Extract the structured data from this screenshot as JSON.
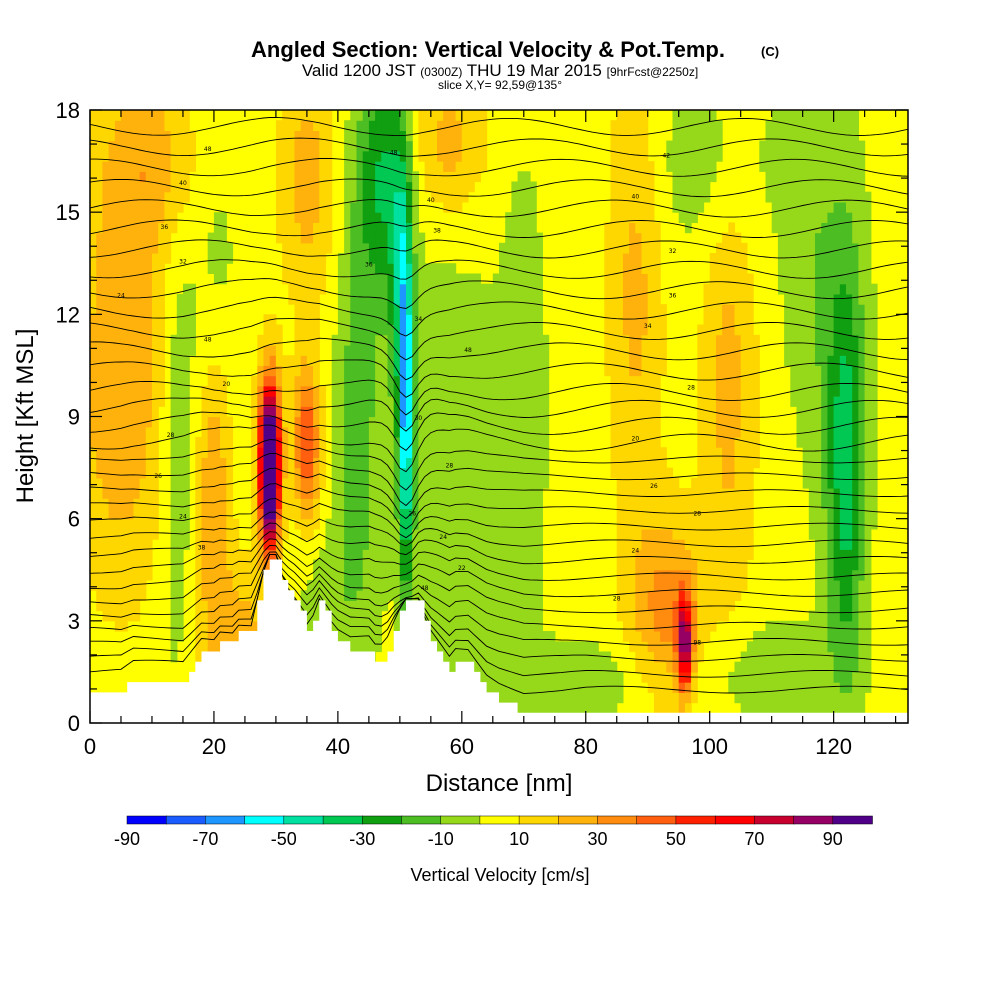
{
  "header": {
    "title": "Angled Section: Vertical Velocity & Pot.Temp.",
    "title_mark": "(C)",
    "valid_prefix": "Valid 1200 JST",
    "valid_zulu": "(0300Z)",
    "valid_date": "THU 19 Mar 2015",
    "forecast": "[9hrFcst@2250z]",
    "slice": "slice X,Y= 92,59@135°"
  },
  "chart_data": {
    "type": "heatmap",
    "title": "Angled Section: Vertical Velocity & Pot.Temp.",
    "xlabel": "Distance [nm]",
    "ylabel": "Height [Kft MSL]",
    "xlim": [
      0,
      132
    ],
    "ylim": [
      0,
      18
    ],
    "x_ticks": [
      0,
      20,
      40,
      60,
      80,
      100,
      120
    ],
    "y_ticks": [
      0,
      3,
      6,
      9,
      12,
      15,
      18
    ],
    "grid": false,
    "colorbar": {
      "label": "Vertical Velocity [cm/s]",
      "bounds": [
        -90,
        100
      ],
      "step": 10,
      "tick_labels": [
        "-90",
        "-70",
        "-50",
        "-30",
        "-10",
        "10",
        "30",
        "50",
        "70",
        "90"
      ],
      "colors": [
        "#0000ff",
        "#1a5cff",
        "#1e96ff",
        "#00ffff",
        "#00e0a0",
        "#00c853",
        "#109f10",
        "#4cbe24",
        "#96d81a",
        "#ffff00",
        "#ffd700",
        "#ffb20c",
        "#ff8c0f",
        "#ff5f0f",
        "#ff2000",
        "#ff0000",
        "#c8002d",
        "#960064",
        "#500088"
      ]
    },
    "background_velocity_cms": 5,
    "velocity_features": [
      {
        "x": 51,
        "y": 9,
        "sx": 0.8,
        "sy": 3.5,
        "value": -58
      },
      {
        "x": 50,
        "y": 13,
        "sx": 1.2,
        "sy": 3.0,
        "value": -30
      },
      {
        "x": 47,
        "y": 16,
        "sx": 3.0,
        "sy": 2.5,
        "value": -35
      },
      {
        "x": 43,
        "y": 8.5,
        "sx": 2.5,
        "sy": 4.0,
        "value": -20
      },
      {
        "x": 29,
        "y": 7.0,
        "sx": 1.0,
        "sy": 1.5,
        "value": 95
      },
      {
        "x": 29,
        "y": 8.3,
        "sx": 1.3,
        "sy": 1.6,
        "value": 65
      },
      {
        "x": 35,
        "y": 8.2,
        "sx": 1.5,
        "sy": 1.6,
        "value": 45
      },
      {
        "x": 96,
        "y": 2.3,
        "sx": 0.9,
        "sy": 1.0,
        "value": 75
      },
      {
        "x": 93,
        "y": 3.2,
        "sx": 4.0,
        "sy": 2.0,
        "value": 30
      },
      {
        "x": 122,
        "y": 7.0,
        "sx": 2.0,
        "sy": 4.0,
        "value": -32
      },
      {
        "x": 121,
        "y": 11.0,
        "sx": 3.5,
        "sy": 5.0,
        "value": -15
      },
      {
        "x": 58,
        "y": 7.5,
        "sx": 7.0,
        "sy": 5.0,
        "value": -12
      },
      {
        "x": 70,
        "y": 9.5,
        "sx": 2.5,
        "sy": 5.0,
        "value": -12
      },
      {
        "x": 14,
        "y": 8.5,
        "sx": 2.0,
        "sy": 6.0,
        "value": -12
      },
      {
        "x": 20,
        "y": 13.0,
        "sx": 3.0,
        "sy": 5.0,
        "value": -10
      },
      {
        "x": 38,
        "y": 3.5,
        "sx": 4.0,
        "sy": 1.5,
        "value": -10
      },
      {
        "x": 100,
        "y": 16.5,
        "sx": 7.0,
        "sy": 2.0,
        "value": -12
      },
      {
        "x": 115,
        "y": 14.5,
        "sx": 3.0,
        "sy": 4.0,
        "value": -10
      },
      {
        "x": 80,
        "y": 1.2,
        "sx": 14.0,
        "sy": 1.0,
        "value": -10
      },
      {
        "x": 110,
        "y": 1.5,
        "sx": 9.0,
        "sy": 1.2,
        "value": -10
      },
      {
        "x": 5,
        "y": 10.0,
        "sx": 5.0,
        "sy": 4.0,
        "value": 25
      },
      {
        "x": 10,
        "y": 16.5,
        "sx": 6.0,
        "sy": 2.0,
        "value": 20
      },
      {
        "x": 20,
        "y": 7.0,
        "sx": 2.0,
        "sy": 3.0,
        "value": 28
      },
      {
        "x": 88,
        "y": 13.0,
        "sx": 3.0,
        "sy": 5.0,
        "value": 18
      },
      {
        "x": 103,
        "y": 10.0,
        "sx": 3.0,
        "sy": 5.0,
        "value": 18
      },
      {
        "x": 35,
        "y": 16.0,
        "sx": 3.0,
        "sy": 2.5,
        "value": 20
      },
      {
        "x": 58,
        "y": 17.0,
        "sx": 4.0,
        "sy": 1.5,
        "value": 20
      },
      {
        "x": 24,
        "y": 2.5,
        "sx": 4.0,
        "sy": 1.5,
        "value": 20
      }
    ],
    "terrain_kft": [
      [
        0,
        1.0
      ],
      [
        5,
        1.0
      ],
      [
        7,
        1.3
      ],
      [
        12,
        1.3
      ],
      [
        13,
        1.3
      ],
      [
        15,
        1.3
      ],
      [
        16,
        1.6
      ],
      [
        17,
        1.9
      ],
      [
        18,
        2.2
      ],
      [
        20,
        2.2
      ],
      [
        21,
        2.5
      ],
      [
        23,
        2.5
      ],
      [
        24,
        2.8
      ],
      [
        26,
        2.8
      ],
      [
        26.5,
        3.2
      ],
      [
        27,
        3.6
      ],
      [
        27.5,
        4.0
      ],
      [
        28,
        4.4
      ],
      [
        29,
        4.9
      ],
      [
        30,
        4.9
      ],
      [
        31,
        4.3
      ],
      [
        32,
        3.9
      ],
      [
        33,
        3.6
      ],
      [
        34,
        3.2
      ],
      [
        35,
        2.8
      ],
      [
        36,
        3.1
      ],
      [
        37,
        3.6
      ],
      [
        38,
        3.2
      ],
      [
        39,
        2.8
      ],
      [
        40,
        2.5
      ],
      [
        42,
        2.2
      ],
      [
        45,
        2.2
      ],
      [
        45.5,
        1.9
      ],
      [
        47,
        1.9
      ],
      [
        48,
        2.2
      ],
      [
        49,
        2.8
      ],
      [
        50,
        3.3
      ],
      [
        51,
        3.6
      ],
      [
        53,
        3.6
      ],
      [
        54,
        3.0
      ],
      [
        55,
        2.5
      ],
      [
        56,
        2.2
      ],
      [
        57,
        1.9
      ],
      [
        58,
        1.6
      ],
      [
        59,
        1.9
      ],
      [
        61,
        1.9
      ],
      [
        62,
        1.6
      ],
      [
        63,
        1.3
      ],
      [
        64,
        1.0
      ],
      [
        66,
        0.7
      ],
      [
        68,
        0.5
      ],
      [
        70,
        0.3
      ],
      [
        72,
        0.3
      ],
      [
        76,
        0.3
      ],
      [
        80,
        0.35
      ],
      [
        90,
        0.35
      ],
      [
        100,
        0.35
      ],
      [
        110,
        0.35
      ],
      [
        120,
        0.35
      ],
      [
        132,
        0.35
      ]
    ],
    "theta_isentrope_kft": [
      0.7,
      1.2,
      1.7,
      2.2,
      2.7,
      3.2,
      3.7,
      4.2,
      4.7,
      5.2,
      5.7,
      6.2,
      6.7,
      7.2,
      7.7,
      8.2,
      8.7,
      9.2,
      9.7,
      10.3,
      10.9,
      11.5,
      12.1,
      12.7,
      13.3,
      13.9,
      14.5,
      15.1,
      15.7,
      16.3,
      16.9,
      17.5
    ],
    "theta_labels": [
      {
        "x": 19,
        "y": 16.8,
        "text": "48"
      },
      {
        "x": 15,
        "y": 15.8,
        "text": "40"
      },
      {
        "x": 12,
        "y": 14.5,
        "text": "36"
      },
      {
        "x": 15,
        "y": 13.5,
        "text": "32"
      },
      {
        "x": 5,
        "y": 12.5,
        "text": "24"
      },
      {
        "x": 19,
        "y": 11.2,
        "text": "48"
      },
      {
        "x": 22,
        "y": 9.9,
        "text": "20"
      },
      {
        "x": 13,
        "y": 8.4,
        "text": "28"
      },
      {
        "x": 11,
        "y": 7.2,
        "text": "26"
      },
      {
        "x": 15,
        "y": 6.0,
        "text": "24"
      },
      {
        "x": 18,
        "y": 5.1,
        "text": "38"
      },
      {
        "x": 49,
        "y": 16.7,
        "text": "48"
      },
      {
        "x": 55,
        "y": 15.3,
        "text": "40"
      },
      {
        "x": 56,
        "y": 14.4,
        "text": "38"
      },
      {
        "x": 45,
        "y": 13.4,
        "text": "36"
      },
      {
        "x": 53,
        "y": 11.8,
        "text": "34"
      },
      {
        "x": 61,
        "y": 10.9,
        "text": "48"
      },
      {
        "x": 53,
        "y": 8.9,
        "text": "30"
      },
      {
        "x": 58,
        "y": 7.5,
        "text": "28"
      },
      {
        "x": 52,
        "y": 6.1,
        "text": "26"
      },
      {
        "x": 57,
        "y": 5.4,
        "text": "24"
      },
      {
        "x": 60,
        "y": 4.5,
        "text": "22"
      },
      {
        "x": 54,
        "y": 3.9,
        "text": "48"
      },
      {
        "x": 93,
        "y": 16.6,
        "text": "42"
      },
      {
        "x": 88,
        "y": 15.4,
        "text": "40"
      },
      {
        "x": 94,
        "y": 13.8,
        "text": "32"
      },
      {
        "x": 94,
        "y": 12.5,
        "text": "36"
      },
      {
        "x": 90,
        "y": 11.6,
        "text": "34"
      },
      {
        "x": 97,
        "y": 9.8,
        "text": "28"
      },
      {
        "x": 88,
        "y": 8.3,
        "text": "20"
      },
      {
        "x": 91,
        "y": 6.9,
        "text": "26"
      },
      {
        "x": 98,
        "y": 6.1,
        "text": "28"
      },
      {
        "x": 88,
        "y": 5.0,
        "text": "24"
      },
      {
        "x": 85,
        "y": 3.6,
        "text": "28"
      },
      {
        "x": 98,
        "y": 2.3,
        "text": "98"
      }
    ]
  }
}
